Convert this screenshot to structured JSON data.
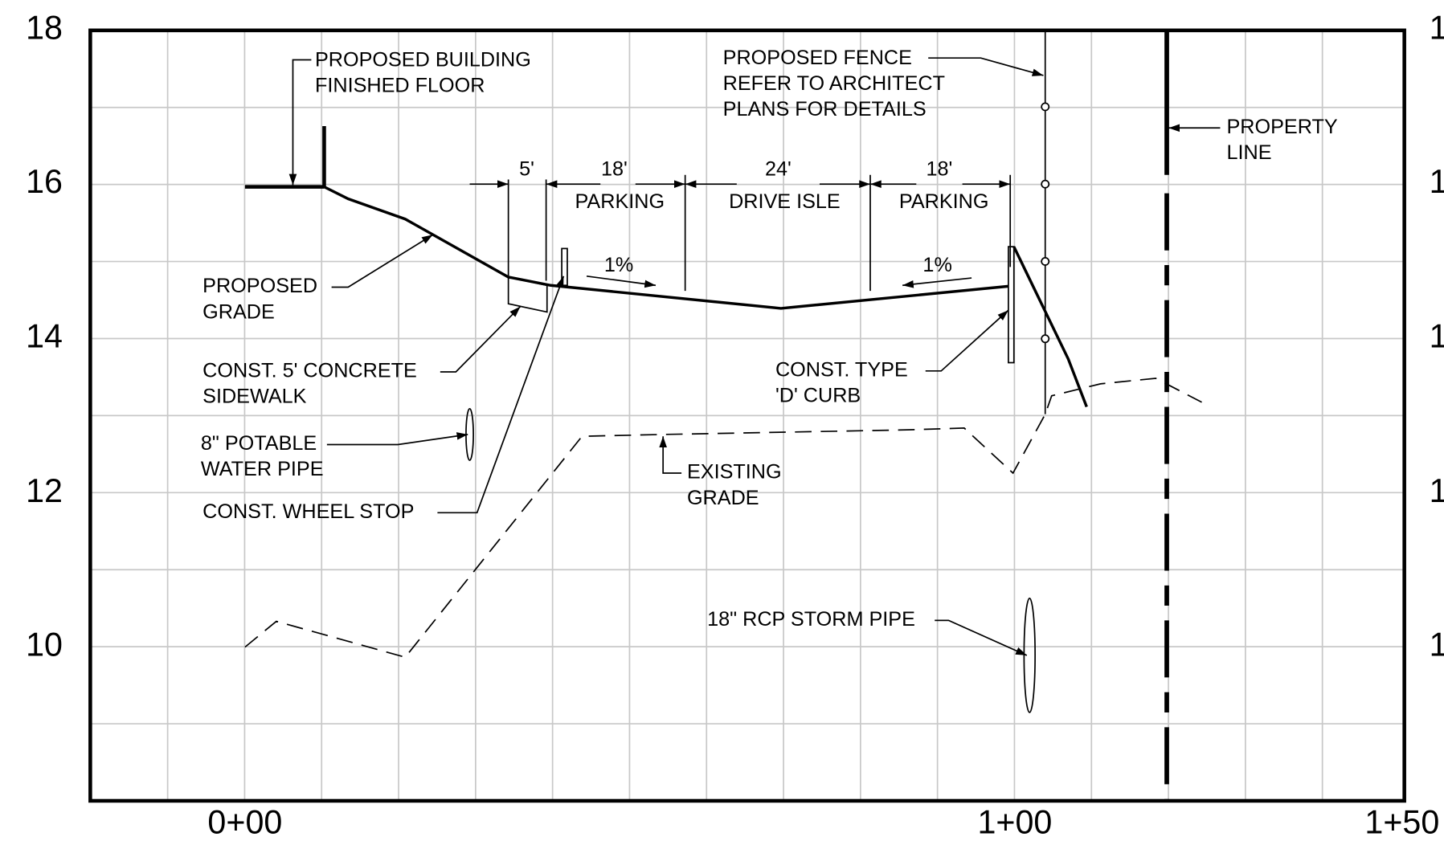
{
  "y_labels": [
    "18",
    "16",
    "14",
    "12",
    "10"
  ],
  "right_labels": [
    "1",
    "1",
    "1",
    "1",
    "1"
  ],
  "x_labels": [
    "0+00",
    "1+00",
    "1+50"
  ],
  "dimensions": [
    "5'",
    "18'",
    "24'",
    "18'"
  ],
  "zones": [
    "PARKING",
    "DRIVE ISLE",
    "PARKING"
  ],
  "slopes": [
    "1%",
    "1%"
  ],
  "annotations": [
    [
      "PROPOSED BUILDING",
      "FINISHED FLOOR"
    ],
    [
      "PROPOSED FENCE",
      "REFER TO ARCHITECT",
      "PLANS FOR DETAILS"
    ],
    [
      "PROPERTY",
      "LINE"
    ],
    [
      "PROPOSED",
      "GRADE"
    ],
    [
      "CONST. 5' CONCRETE",
      "SIDEWALK"
    ],
    [
      "8\" POTABLE",
      "WATER PIPE"
    ],
    [
      "CONST. WHEEL STOP"
    ],
    [
      "EXISTING",
      "GRADE"
    ],
    [
      "CONST. TYPE",
      "'D' CURB"
    ],
    [
      "18\" RCP STORM PIPE"
    ]
  ]
}
